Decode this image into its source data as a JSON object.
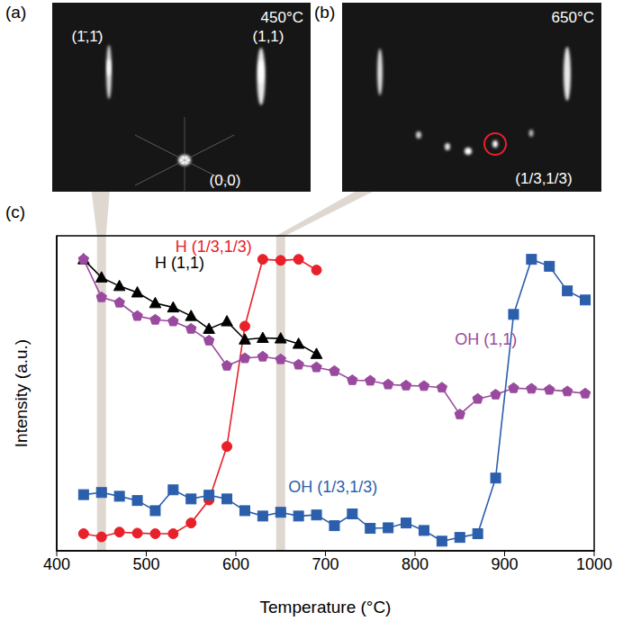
{
  "panels": [
    {
      "label": "(a)",
      "temperature": "450°C",
      "spots": [
        "(1̄,1̄)",
        "(1,1)",
        "(0,0)"
      ]
    },
    {
      "label": "(b)",
      "temperature": "650°C",
      "spots": [
        "(1/3,1/3)"
      ]
    }
  ],
  "chart_data": {
    "label": "(c)",
    "type": "line",
    "x_label": "Temperature (°C)",
    "y_label": "Intensity (a.u.)",
    "x": [
      430,
      450,
      470,
      490,
      510,
      530,
      550,
      570,
      590,
      610,
      630,
      650,
      670,
      690,
      710,
      730,
      750,
      770,
      790,
      810,
      830,
      850,
      870,
      890,
      910,
      930,
      950,
      970,
      990
    ],
    "series": [
      {
        "name": "H (1,1)",
        "color": "#000000",
        "marker": "triangle",
        "values": [
          5.0,
          4.66,
          4.5,
          4.38,
          4.18,
          4.1,
          3.94,
          3.7,
          3.84,
          3.5,
          3.53,
          3.52,
          3.42,
          3.23,
          null,
          null,
          null,
          null,
          null,
          null,
          null,
          null,
          null,
          null,
          null,
          null,
          null,
          null,
          null
        ]
      },
      {
        "name": "H (1/3,1/3)",
        "color": "#e8202a",
        "marker": "circle",
        "values": [
          -0.13,
          -0.19,
          -0.1,
          -0.12,
          -0.13,
          -0.13,
          0.07,
          0.5,
          1.5,
          3.75,
          5.0,
          4.98,
          5.0,
          4.8,
          null,
          null,
          null,
          null,
          null,
          null,
          null,
          null,
          null,
          null,
          null,
          null,
          null,
          null,
          null
        ]
      },
      {
        "name": "OH (1,1)",
        "color": "#9a4a9e",
        "marker": "pentagon",
        "values": [
          5.0,
          4.29,
          4.19,
          3.94,
          3.87,
          3.84,
          3.7,
          3.48,
          3.01,
          3.15,
          3.18,
          3.13,
          3.03,
          2.98,
          2.91,
          2.74,
          2.73,
          2.66,
          2.64,
          2.63,
          2.6,
          2.1,
          2.39,
          2.47,
          2.59,
          2.58,
          2.56,
          2.53,
          2.49
        ]
      },
      {
        "name": "OH (1/3,1/3)",
        "color": "#2b5eab",
        "marker": "square",
        "values": [
          0.6,
          0.64,
          0.57,
          0.49,
          0.3,
          0.69,
          0.52,
          0.59,
          0.52,
          0.3,
          0.2,
          0.27,
          0.2,
          0.22,
          0.02,
          0.24,
          -0.03,
          -0.02,
          0.07,
          -0.07,
          -0.27,
          -0.2,
          -0.13,
          0.91,
          3.97,
          5.0,
          4.87,
          4.41,
          4.24
        ]
      }
    ],
    "xlim": [
      400,
      1000
    ],
    "xticks": [
      400,
      500,
      600,
      700,
      800,
      900,
      1000
    ],
    "ylim": [
      -0.45,
      5.44
    ],
    "yticks": [
      0,
      1,
      2,
      3,
      4,
      5
    ],
    "tick_labels": "x",
    "highlight_x": [
      450,
      650
    ]
  }
}
